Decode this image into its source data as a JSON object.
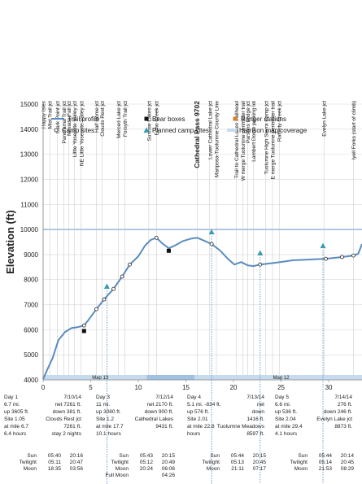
{
  "chart_data": {
    "type": "line",
    "y_label": "Elevation (ft)",
    "xlim": [
      0,
      33.5
    ],
    "ylim": [
      4000,
      15000
    ],
    "xticks": [
      0,
      5,
      10,
      15,
      20,
      25,
      30
    ],
    "yticks": [
      4000,
      5000,
      6000,
      7000,
      8000,
      9000,
      10000,
      11000,
      12000,
      13000,
      14000,
      15000
    ],
    "grid": true,
    "highlight_y": 10000,
    "highlight_color": "#7fa8d6",
    "series": [
      {
        "name": "Trail profile",
        "color": "#5b8cbf",
        "x": [
          0,
          0.4,
          1.0,
          1.6,
          2.3,
          3.0,
          3.6,
          4.3,
          4.7,
          5.6,
          6.4,
          7.4,
          8.3,
          9.1,
          10.0,
          10.7,
          11.3,
          11.9,
          12.6,
          13.2,
          13.8,
          14.7,
          15.6,
          16.2,
          17.0,
          17.7,
          18.6,
          19.4,
          20.1,
          20.8,
          21.5,
          22.1,
          22.8,
          23.7,
          24.9,
          26.2,
          27.9,
          29.7,
          31.4,
          32.6,
          33.1,
          33.5
        ],
        "values": [
          4030,
          4380,
          4870,
          5580,
          5910,
          6070,
          6100,
          6170,
          6360,
          6820,
          7210,
          7630,
          8120,
          8600,
          8930,
          9350,
          9580,
          9670,
          9420,
          9250,
          9350,
          9540,
          9640,
          9670,
          9540,
          9420,
          9160,
          8830,
          8600,
          8700,
          8570,
          8540,
          8600,
          8640,
          8700,
          8770,
          8800,
          8830,
          8900,
          8960,
          9030,
          9420
        ]
      }
    ],
    "markers": [
      {
        "name": "Bear boxes",
        "shape": "square",
        "color": "#111111",
        "x": [
          4.3,
          13.2
        ],
        "values": [
          5950,
          9150
        ]
      },
      {
        "name": "Ranger stations",
        "shape": "square",
        "color": "#d9822b",
        "x": [],
        "values": []
      },
      {
        "name": "Camp sites",
        "shape": "circle",
        "color": "#222222",
        "x": [
          4.3,
          5.6,
          6.4,
          7.4,
          8.3,
          9.1,
          11.9,
          17.7,
          22.8,
          29.7,
          31.4,
          32.6
        ],
        "values": [
          6170,
          6820,
          7210,
          7630,
          8120,
          8600,
          9670,
          9420,
          8600,
          8830,
          8900,
          8960
        ]
      },
      {
        "name": "Planned camp sites",
        "shape": "triangle",
        "color": "#3a9ab0",
        "x": [
          6.7,
          17.7,
          22.8,
          29.4
        ],
        "values": [
          7730,
          9900,
          9060,
          9350
        ]
      }
    ],
    "map_coverage": {
      "name": "Harrison map coverage",
      "color": "#c7dbee",
      "overlap_color": "#9fc1e2",
      "overlap": [
        10.9,
        15.9
      ],
      "labels": [
        {
          "label": "Map 13",
          "x": 6
        },
        {
          "label": "Map 12",
          "x": 25
        }
      ]
    },
    "landmarks": [
      {
        "name": "Happy Isles",
        "x": 0
      },
      {
        "name": "Mist Trail jct",
        "x": 0.7
      },
      {
        "name": "Clark Point jct",
        "x": 1.5
      },
      {
        "name": "Panorama Trail jct",
        "x": 2.2
      },
      {
        "name": "Nevada Fall jct",
        "x": 2.7
      },
      {
        "name": "Little Yosemite Valley jct",
        "x": 3.3
      },
      {
        "name": "NE Little Yosemite Valley jct",
        "x": 4.0
      },
      {
        "name": "Half Dome jct",
        "x": 5.6
      },
      {
        "name": "Clouds Rest jct",
        "x": 6.2
      },
      {
        "name": "Merced Lake jct",
        "x": 7.9
      },
      {
        "name": "Forsyth Trail jct",
        "x": 8.6
      },
      {
        "name": "Sunrise Lakes jct",
        "x": 11.1
      },
      {
        "name": "Echo Creek jct",
        "x": 11.9
      },
      {
        "name": "Cathedral Pass 9702",
        "x": 16.2,
        "bold": true
      },
      {
        "name": "Lower Cathedral Lake jct",
        "x": 17.5
      },
      {
        "name": "Mariposa-Tuolumne County Line",
        "x": 18.2
      },
      {
        "name": "Trail to Cathedral Lakes trailhead",
        "x": 20.3
      },
      {
        "name": "W merge Tuolumne perimeter trail",
        "x": 21.0
      },
      {
        "name": "Parsons Lodge jct",
        "x": 21.5
      },
      {
        "name": "Lambert Dome parking lot",
        "x": 22.1
      },
      {
        "name": "Tuolumne High Sierra Camp jct",
        "x": 23.4
      },
      {
        "name": "E merge Tuolumne perimeter trail",
        "x": 24.1
      },
      {
        "name": "Rafferty Creek jct",
        "x": 24.8
      },
      {
        "name": "Evelyn Lake jct",
        "x": 29.5
      },
      {
        "name": "lyell Forks (start of climb)",
        "x": 32.6
      }
    ]
  },
  "days": [
    {
      "rows": [
        [
          "Day 1",
          "7/10/14"
        ],
        [
          "6.7 mi.",
          "net 7261 ft."
        ],
        [
          "up 3605 ft.",
          "down 381 ft."
        ],
        [
          "Site 1.05",
          "Clouds Rest jct"
        ],
        [
          "at mile 6.7",
          "7261 ft."
        ],
        [
          "6.4 hours",
          "stay 2 nights"
        ]
      ],
      "sun": [
        [
          "Sun",
          "05:40",
          "20:16"
        ],
        [
          "Twilight",
          "05:11",
          "20:47"
        ],
        [
          "Moon",
          "18:35",
          "03:56"
        ]
      ]
    },
    {
      "rows": [
        [
          "Day 3",
          "7/12/14"
        ],
        [
          "11 mi.",
          "net 2170 ft."
        ],
        [
          "up 3080 ft.",
          "down 900 ft."
        ],
        [
          "Site 1.2",
          "Cathedral Lakes"
        ],
        [
          "at mile 17.7",
          "9431 ft."
        ],
        [
          "10.1 hours"
        ]
      ],
      "sun": [
        [
          "Sun",
          "05:43",
          "20:15"
        ],
        [
          "Twilight",
          "05:12",
          "20:49"
        ],
        [
          "Moon",
          "20:24",
          "06:06"
        ],
        [
          "Full Moon",
          "04:26"
        ]
      ]
    },
    {
      "rows": [
        [
          "Day 4",
          "7/13/14"
        ],
        [
          "5.1 mi. -834 ft.",
          "net"
        ],
        [
          "up 576 ft.",
          "down"
        ],
        [
          "Site 2.01",
          "1416 ft."
        ],
        [
          "at mile 22.8",
          "Tuolumne Meadows"
        ],
        [
          "hours",
          "8597 ft."
        ]
      ],
      "sun": [
        [
          "Sun",
          "05:44",
          "20:15"
        ],
        [
          "Twilight",
          "05:13",
          "20:45"
        ],
        [
          "Moon",
          "21:11",
          "07:17"
        ]
      ]
    },
    {
      "rows": [
        [
          "Day 5",
          "7/14/14"
        ],
        [
          "6.6 mi.",
          "276 ft."
        ],
        [
          "up 536 ft.",
          "down 246 ft."
        ],
        [
          "Site 2.04",
          "Evelyn Lake jct"
        ],
        [
          "at mile 29.4",
          "8873 ft."
        ],
        [
          "4.1 hours"
        ]
      ],
      "sun": [
        [
          "Sun",
          "05:44",
          "20:14"
        ],
        [
          "Twilight",
          "05:14",
          "20:45"
        ],
        [
          "Moon",
          "21:53",
          "08:29"
        ]
      ]
    }
  ]
}
